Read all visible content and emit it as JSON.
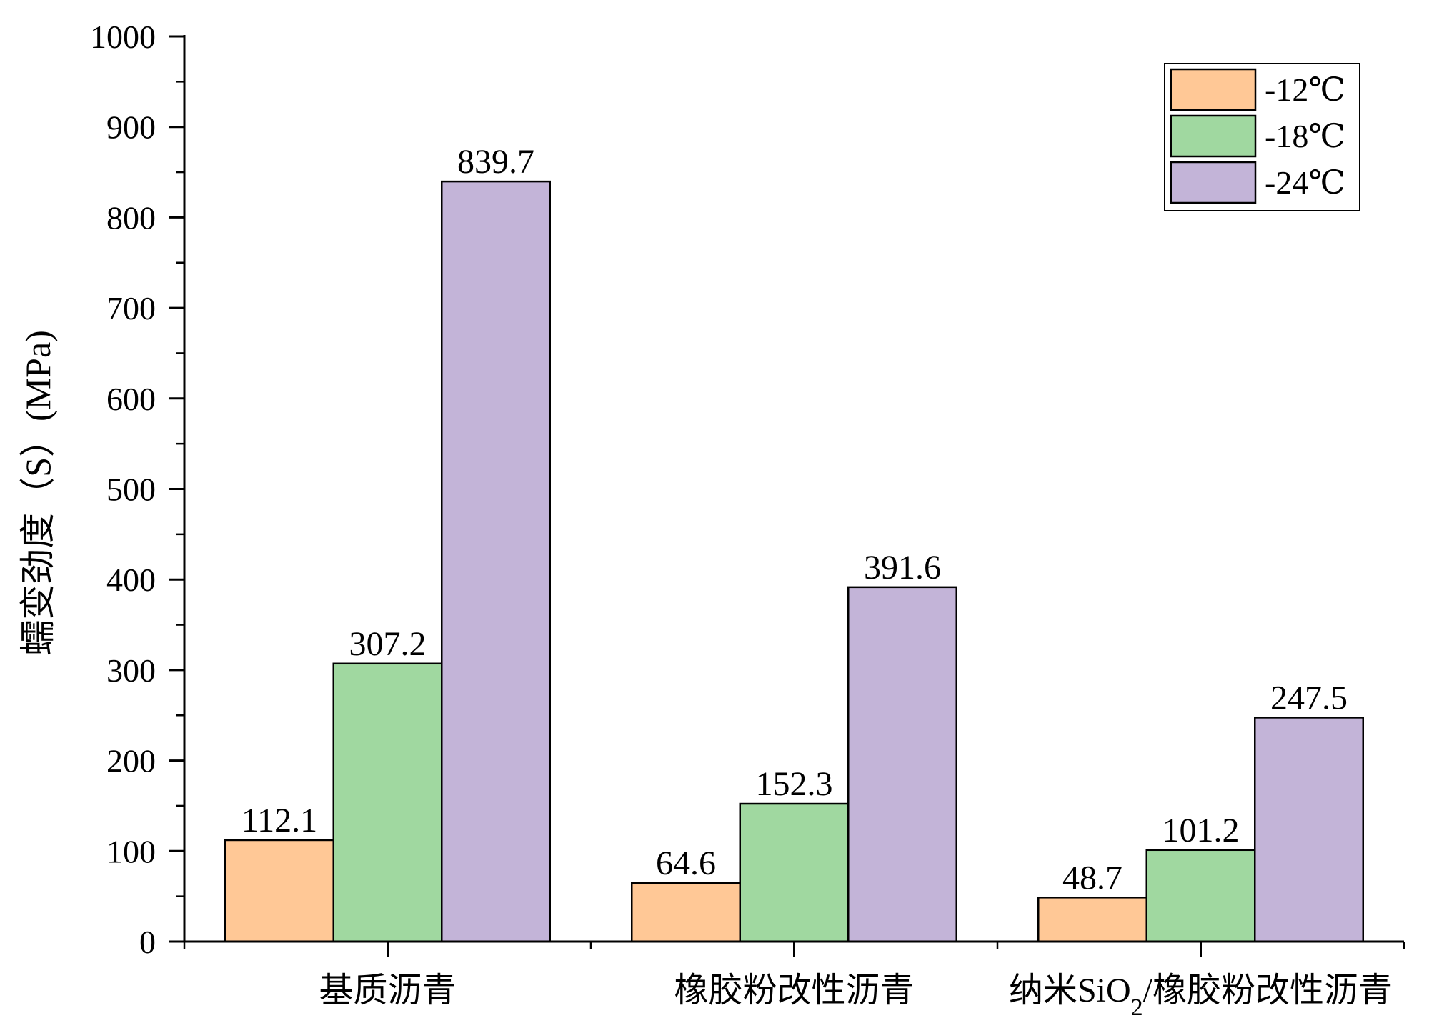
{
  "chart_data": {
    "type": "bar",
    "categories": [
      "基质沥青",
      "橡胶粉改性沥青",
      "纳米SiO2/橡胶粉改性沥青"
    ],
    "series": [
      {
        "name": "-12℃",
        "color": "#FFC896",
        "values": [
          112.1,
          64.6,
          48.7
        ]
      },
      {
        "name": "-18℃",
        "color": "#A0D8A0",
        "values": [
          307.2,
          152.3,
          101.2
        ]
      },
      {
        "name": "-24℃",
        "color": "#C3B4D8",
        "values": [
          839.7,
          391.6,
          247.5
        ]
      }
    ],
    "xlabel": "",
    "ylabel": "蠕变劲度（S）(MPa)",
    "ylim": [
      0,
      1000
    ],
    "yticks": [
      0,
      100,
      200,
      300,
      400,
      500,
      600,
      700,
      800,
      900,
      1000
    ],
    "grid": false,
    "legend_position": "top-right"
  }
}
